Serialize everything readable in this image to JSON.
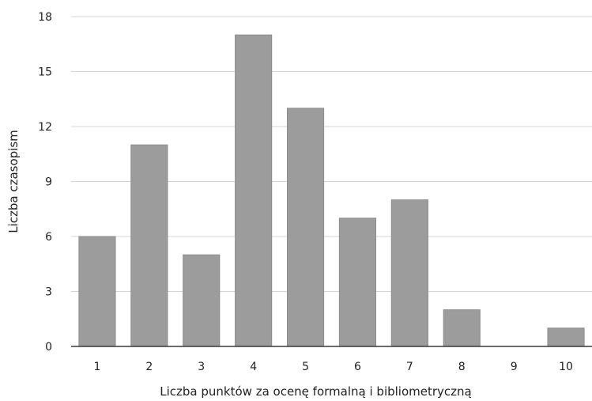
{
  "chart_data": {
    "type": "bar",
    "title": "",
    "xlabel": "Liczba punktów za ocenę formalną i bibliometryczną",
    "ylabel": "Liczba czasopism",
    "categories": [
      "1",
      "2",
      "3",
      "4",
      "5",
      "6",
      "7",
      "8",
      "9",
      "10"
    ],
    "values": [
      6,
      11,
      5,
      17,
      13,
      7,
      8,
      2,
      0,
      1
    ],
    "ylim": [
      0,
      18
    ],
    "yticks": [
      "0",
      "3",
      "6",
      "9",
      "12",
      "15",
      "18"
    ],
    "grid": true,
    "legend": "none",
    "colors": {
      "bar": "#9c9c9c",
      "grid": "#d4d4d4",
      "baseline": "#3a3a3a",
      "text": "#222222"
    }
  }
}
